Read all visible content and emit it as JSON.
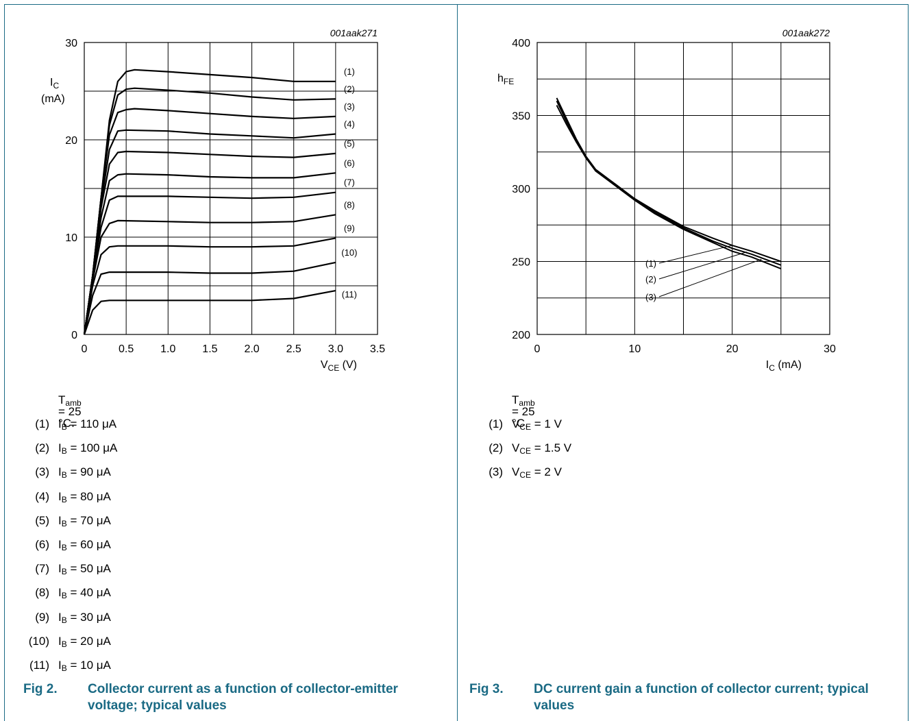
{
  "figures": [
    {
      "id": "fig2",
      "code": "001aak271",
      "fig_label": "Fig 2.",
      "caption": "Collector current as a function of collector-emitter voltage; typical values",
      "condition": {
        "main": "T",
        "sub": "amb",
        "rest": " = 25 °C."
      },
      "legend": [
        {
          "num": "(1)",
          "main": "I",
          "sub": "B",
          "rest": " = 110 μA"
        },
        {
          "num": "(2)",
          "main": "I",
          "sub": "B",
          "rest": " = 100 μA"
        },
        {
          "num": "(3)",
          "main": "I",
          "sub": "B",
          "rest": " = 90 μA"
        },
        {
          "num": "(4)",
          "main": "I",
          "sub": "B",
          "rest": " = 80 μA"
        },
        {
          "num": "(5)",
          "main": "I",
          "sub": "B",
          "rest": " = 70 μA"
        },
        {
          "num": "(6)",
          "main": "I",
          "sub": "B",
          "rest": " = 60 μA"
        },
        {
          "num": "(7)",
          "main": "I",
          "sub": "B",
          "rest": " = 50 μA"
        },
        {
          "num": "(8)",
          "main": "I",
          "sub": "B",
          "rest": " = 40 μA"
        },
        {
          "num": "(9)",
          "main": "I",
          "sub": "B",
          "rest": " = 30 μA"
        },
        {
          "num": "(10)",
          "main": "I",
          "sub": "B",
          "rest": " = 20 μA"
        },
        {
          "num": "(11)",
          "main": "I",
          "sub": "B",
          "rest": " = 10 μA"
        }
      ]
    },
    {
      "id": "fig3",
      "code": "001aak272",
      "fig_label": "Fig 3.",
      "caption": "DC current gain a function of collector current; typical values",
      "condition": {
        "main": "T",
        "sub": "amb",
        "rest": " = 25 °C."
      },
      "legend": [
        {
          "num": "(1)",
          "main": "V",
          "sub": "CE",
          "rest": " = 1 V"
        },
        {
          "num": "(2)",
          "main": "V",
          "sub": "CE",
          "rest": " = 1.5 V"
        },
        {
          "num": "(3)",
          "main": "V",
          "sub": "CE",
          "rest": " = 2 V"
        }
      ]
    }
  ],
  "chart_data": [
    {
      "type": "line",
      "xlabel": {
        "main": "V",
        "sub": "CE",
        "rest": " (V)"
      },
      "ylabel": {
        "main": "I",
        "sub": "C",
        "unit": "(mA)"
      },
      "xlim": [
        0,
        3.5
      ],
      "ylim": [
        0,
        30
      ],
      "x_ticks": [
        "0",
        "0.5",
        "1.0",
        "1.5",
        "2.0",
        "2.5",
        "3.0",
        "3.5"
      ],
      "y_ticks": [
        "0",
        "10",
        "20",
        "30"
      ],
      "grid": true,
      "series": [
        {
          "label": "(1)",
          "points": [
            [
              0,
              0
            ],
            [
              0.1,
              6
            ],
            [
              0.2,
              14
            ],
            [
              0.3,
              22
            ],
            [
              0.4,
              26
            ],
            [
              0.5,
              27
            ],
            [
              0.6,
              27.2
            ],
            [
              1.0,
              27
            ],
            [
              1.5,
              26.7
            ],
            [
              2.0,
              26.4
            ],
            [
              2.5,
              26
            ],
            [
              3.0,
              26
            ]
          ]
        },
        {
          "label": "(2)",
          "points": [
            [
              0,
              0
            ],
            [
              0.1,
              6
            ],
            [
              0.2,
              14
            ],
            [
              0.3,
              21.5
            ],
            [
              0.4,
              24.6
            ],
            [
              0.5,
              25.2
            ],
            [
              0.6,
              25.3
            ],
            [
              1.0,
              25.1
            ],
            [
              1.5,
              24.8
            ],
            [
              2.0,
              24.4
            ],
            [
              2.5,
              24.1
            ],
            [
              3.0,
              24.2
            ]
          ]
        },
        {
          "label": "(3)",
          "points": [
            [
              0,
              0
            ],
            [
              0.1,
              6
            ],
            [
              0.2,
              14
            ],
            [
              0.3,
              20.5
            ],
            [
              0.4,
              22.8
            ],
            [
              0.5,
              23.1
            ],
            [
              0.6,
              23.2
            ],
            [
              1.0,
              23
            ],
            [
              1.5,
              22.7
            ],
            [
              2.0,
              22.4
            ],
            [
              2.5,
              22.2
            ],
            [
              3.0,
              22.4
            ]
          ]
        },
        {
          "label": "(4)",
          "points": [
            [
              0,
              0
            ],
            [
              0.1,
              6
            ],
            [
              0.2,
              13.5
            ],
            [
              0.3,
              19
            ],
            [
              0.4,
              20.9
            ],
            [
              0.5,
              21
            ],
            [
              1.0,
              20.9
            ],
            [
              1.5,
              20.6
            ],
            [
              2.0,
              20.4
            ],
            [
              2.5,
              20.2
            ],
            [
              3.0,
              20.6
            ]
          ]
        },
        {
          "label": "(5)",
          "points": [
            [
              0,
              0
            ],
            [
              0.1,
              6
            ],
            [
              0.2,
              13
            ],
            [
              0.3,
              17.5
            ],
            [
              0.4,
              18.7
            ],
            [
              0.5,
              18.8
            ],
            [
              1.0,
              18.7
            ],
            [
              1.5,
              18.5
            ],
            [
              2.0,
              18.3
            ],
            [
              2.5,
              18.2
            ],
            [
              3.0,
              18.6
            ]
          ]
        },
        {
          "label": "(6)",
          "points": [
            [
              0,
              0
            ],
            [
              0.1,
              6
            ],
            [
              0.2,
              12
            ],
            [
              0.3,
              15.8
            ],
            [
              0.4,
              16.4
            ],
            [
              0.5,
              16.5
            ],
            [
              1.0,
              16.4
            ],
            [
              1.5,
              16.2
            ],
            [
              2.0,
              16.1
            ],
            [
              2.5,
              16.1
            ],
            [
              3.0,
              16.6
            ]
          ]
        },
        {
          "label": "(7)",
          "points": [
            [
              0,
              0
            ],
            [
              0.1,
              6
            ],
            [
              0.2,
              11
            ],
            [
              0.3,
              13.8
            ],
            [
              0.4,
              14.2
            ],
            [
              1.0,
              14.2
            ],
            [
              1.5,
              14.1
            ],
            [
              2.0,
              14
            ],
            [
              2.5,
              14.1
            ],
            [
              3.0,
              14.6
            ]
          ]
        },
        {
          "label": "(8)",
          "points": [
            [
              0,
              0
            ],
            [
              0.1,
              5.5
            ],
            [
              0.2,
              10
            ],
            [
              0.3,
              11.4
            ],
            [
              0.4,
              11.7
            ],
            [
              1.0,
              11.6
            ],
            [
              1.5,
              11.5
            ],
            [
              2.0,
              11.5
            ],
            [
              2.5,
              11.6
            ],
            [
              3.0,
              12.3
            ]
          ]
        },
        {
          "label": "(9)",
          "points": [
            [
              0,
              0
            ],
            [
              0.1,
              5
            ],
            [
              0.2,
              8.2
            ],
            [
              0.3,
              9
            ],
            [
              0.4,
              9.1
            ],
            [
              1.0,
              9.1
            ],
            [
              1.5,
              9
            ],
            [
              2.0,
              9
            ],
            [
              2.5,
              9.1
            ],
            [
              3.0,
              9.9
            ]
          ]
        },
        {
          "label": "(10)",
          "points": [
            [
              0,
              0
            ],
            [
              0.1,
              4
            ],
            [
              0.2,
              6.2
            ],
            [
              0.3,
              6.4
            ],
            [
              1.0,
              6.4
            ],
            [
              1.5,
              6.3
            ],
            [
              2.0,
              6.3
            ],
            [
              2.5,
              6.5
            ],
            [
              3.0,
              7.4
            ]
          ]
        },
        {
          "label": "(11)",
          "points": [
            [
              0,
              0
            ],
            [
              0.1,
              2.5
            ],
            [
              0.2,
              3.4
            ],
            [
              0.3,
              3.5
            ],
            [
              1.0,
              3.5
            ],
            [
              1.5,
              3.5
            ],
            [
              2.0,
              3.5
            ],
            [
              2.5,
              3.7
            ],
            [
              3.0,
              4.5
            ]
          ]
        }
      ]
    },
    {
      "type": "line",
      "xlabel": {
        "main": "I",
        "sub": "C",
        "rest": " (mA)"
      },
      "ylabel": {
        "main": "h",
        "sub": "FE"
      },
      "xlim": [
        0,
        30
      ],
      "ylim": [
        200,
        400
      ],
      "x_ticks": [
        "0",
        "10",
        "20",
        "30"
      ],
      "y_ticks": [
        "200",
        "250",
        "300",
        "350",
        "400"
      ],
      "grid": true,
      "series": [
        {
          "label": "(1)",
          "points": [
            [
              2,
              362
            ],
            [
              3,
              348
            ],
            [
              4,
              334
            ],
            [
              5,
              322
            ],
            [
              6,
              313
            ],
            [
              8,
              303
            ],
            [
              10,
              293
            ],
            [
              12,
              285
            ],
            [
              15,
              274
            ],
            [
              18,
              266
            ],
            [
              20,
              261
            ],
            [
              22,
              257
            ],
            [
              25,
              250
            ]
          ]
        },
        {
          "label": "(2)",
          "points": [
            [
              2,
              360
            ],
            [
              3,
              346
            ],
            [
              4,
              333
            ],
            [
              5,
              321
            ],
            [
              6,
              312
            ],
            [
              8,
              302
            ],
            [
              10,
              292
            ],
            [
              12,
              284
            ],
            [
              15,
              273
            ],
            [
              18,
              264
            ],
            [
              20,
              259
            ],
            [
              22,
              255
            ],
            [
              25,
              247.5
            ]
          ]
        },
        {
          "label": "(3)",
          "points": [
            [
              2,
              357
            ],
            [
              3,
              344
            ],
            [
              4,
              332
            ],
            [
              5,
              321
            ],
            [
              6,
              312
            ],
            [
              8,
              302
            ],
            [
              10,
              292
            ],
            [
              12,
              283
            ],
            [
              15,
              272
            ],
            [
              18,
              263
            ],
            [
              20,
              257
            ],
            [
              22,
              253
            ],
            [
              25,
              245
            ]
          ]
        }
      ]
    }
  ]
}
